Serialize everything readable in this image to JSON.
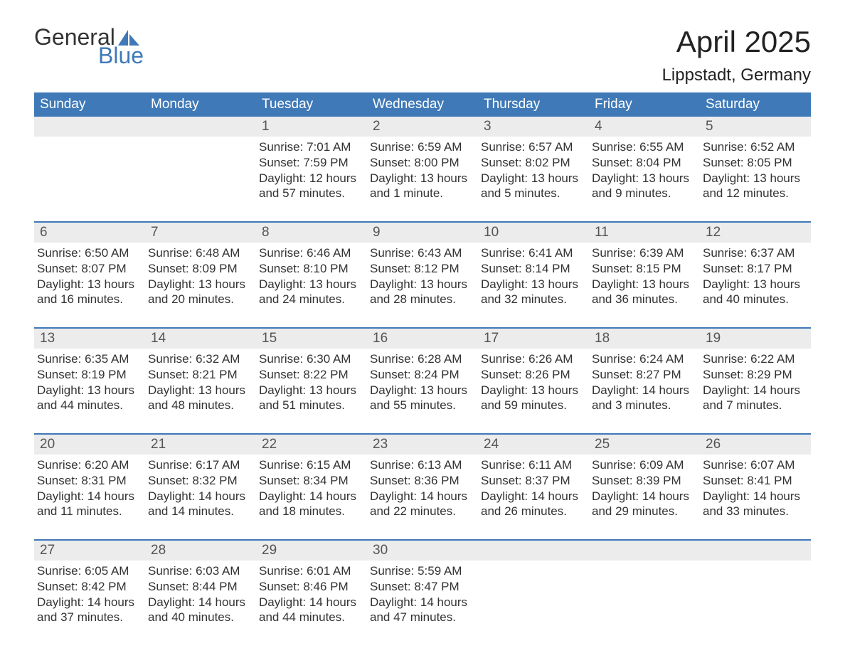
{
  "brand": {
    "general": "General",
    "blue": "Blue",
    "sail_color": "#3f79b7"
  },
  "title": {
    "month": "April 2025",
    "location": "Lippstadt, Germany"
  },
  "colors": {
    "header_bg": "#3f79b7",
    "header_text": "#ffffff",
    "daynum_bg": "#ececec",
    "daynum_text": "#555555",
    "body_text": "#333333",
    "divider": "#3f79b7",
    "page_bg": "#ffffff"
  },
  "typography": {
    "title_fontsize": 42,
    "location_fontsize": 24,
    "dow_fontsize": 19,
    "daynum_fontsize": 19,
    "body_fontsize": 17,
    "font_family": "Arial"
  },
  "days_of_week": [
    "Sunday",
    "Monday",
    "Tuesday",
    "Wednesday",
    "Thursday",
    "Friday",
    "Saturday"
  ],
  "weeks": [
    [
      null,
      null,
      {
        "num": "1",
        "sunrise": "Sunrise: 7:01 AM",
        "sunset": "Sunset: 7:59 PM",
        "daylight": "Daylight: 12 hours and 57 minutes."
      },
      {
        "num": "2",
        "sunrise": "Sunrise: 6:59 AM",
        "sunset": "Sunset: 8:00 PM",
        "daylight": "Daylight: 13 hours and 1 minute."
      },
      {
        "num": "3",
        "sunrise": "Sunrise: 6:57 AM",
        "sunset": "Sunset: 8:02 PM",
        "daylight": "Daylight: 13 hours and 5 minutes."
      },
      {
        "num": "4",
        "sunrise": "Sunrise: 6:55 AM",
        "sunset": "Sunset: 8:04 PM",
        "daylight": "Daylight: 13 hours and 9 minutes."
      },
      {
        "num": "5",
        "sunrise": "Sunrise: 6:52 AM",
        "sunset": "Sunset: 8:05 PM",
        "daylight": "Daylight: 13 hours and 12 minutes."
      }
    ],
    [
      {
        "num": "6",
        "sunrise": "Sunrise: 6:50 AM",
        "sunset": "Sunset: 8:07 PM",
        "daylight": "Daylight: 13 hours and 16 minutes."
      },
      {
        "num": "7",
        "sunrise": "Sunrise: 6:48 AM",
        "sunset": "Sunset: 8:09 PM",
        "daylight": "Daylight: 13 hours and 20 minutes."
      },
      {
        "num": "8",
        "sunrise": "Sunrise: 6:46 AM",
        "sunset": "Sunset: 8:10 PM",
        "daylight": "Daylight: 13 hours and 24 minutes."
      },
      {
        "num": "9",
        "sunrise": "Sunrise: 6:43 AM",
        "sunset": "Sunset: 8:12 PM",
        "daylight": "Daylight: 13 hours and 28 minutes."
      },
      {
        "num": "10",
        "sunrise": "Sunrise: 6:41 AM",
        "sunset": "Sunset: 8:14 PM",
        "daylight": "Daylight: 13 hours and 32 minutes."
      },
      {
        "num": "11",
        "sunrise": "Sunrise: 6:39 AM",
        "sunset": "Sunset: 8:15 PM",
        "daylight": "Daylight: 13 hours and 36 minutes."
      },
      {
        "num": "12",
        "sunrise": "Sunrise: 6:37 AM",
        "sunset": "Sunset: 8:17 PM",
        "daylight": "Daylight: 13 hours and 40 minutes."
      }
    ],
    [
      {
        "num": "13",
        "sunrise": "Sunrise: 6:35 AM",
        "sunset": "Sunset: 8:19 PM",
        "daylight": "Daylight: 13 hours and 44 minutes."
      },
      {
        "num": "14",
        "sunrise": "Sunrise: 6:32 AM",
        "sunset": "Sunset: 8:21 PM",
        "daylight": "Daylight: 13 hours and 48 minutes."
      },
      {
        "num": "15",
        "sunrise": "Sunrise: 6:30 AM",
        "sunset": "Sunset: 8:22 PM",
        "daylight": "Daylight: 13 hours and 51 minutes."
      },
      {
        "num": "16",
        "sunrise": "Sunrise: 6:28 AM",
        "sunset": "Sunset: 8:24 PM",
        "daylight": "Daylight: 13 hours and 55 minutes."
      },
      {
        "num": "17",
        "sunrise": "Sunrise: 6:26 AM",
        "sunset": "Sunset: 8:26 PM",
        "daylight": "Daylight: 13 hours and 59 minutes."
      },
      {
        "num": "18",
        "sunrise": "Sunrise: 6:24 AM",
        "sunset": "Sunset: 8:27 PM",
        "daylight": "Daylight: 14 hours and 3 minutes."
      },
      {
        "num": "19",
        "sunrise": "Sunrise: 6:22 AM",
        "sunset": "Sunset: 8:29 PM",
        "daylight": "Daylight: 14 hours and 7 minutes."
      }
    ],
    [
      {
        "num": "20",
        "sunrise": "Sunrise: 6:20 AM",
        "sunset": "Sunset: 8:31 PM",
        "daylight": "Daylight: 14 hours and 11 minutes."
      },
      {
        "num": "21",
        "sunrise": "Sunrise: 6:17 AM",
        "sunset": "Sunset: 8:32 PM",
        "daylight": "Daylight: 14 hours and 14 minutes."
      },
      {
        "num": "22",
        "sunrise": "Sunrise: 6:15 AM",
        "sunset": "Sunset: 8:34 PM",
        "daylight": "Daylight: 14 hours and 18 minutes."
      },
      {
        "num": "23",
        "sunrise": "Sunrise: 6:13 AM",
        "sunset": "Sunset: 8:36 PM",
        "daylight": "Daylight: 14 hours and 22 minutes."
      },
      {
        "num": "24",
        "sunrise": "Sunrise: 6:11 AM",
        "sunset": "Sunset: 8:37 PM",
        "daylight": "Daylight: 14 hours and 26 minutes."
      },
      {
        "num": "25",
        "sunrise": "Sunrise: 6:09 AM",
        "sunset": "Sunset: 8:39 PM",
        "daylight": "Daylight: 14 hours and 29 minutes."
      },
      {
        "num": "26",
        "sunrise": "Sunrise: 6:07 AM",
        "sunset": "Sunset: 8:41 PM",
        "daylight": "Daylight: 14 hours and 33 minutes."
      }
    ],
    [
      {
        "num": "27",
        "sunrise": "Sunrise: 6:05 AM",
        "sunset": "Sunset: 8:42 PM",
        "daylight": "Daylight: 14 hours and 37 minutes."
      },
      {
        "num": "28",
        "sunrise": "Sunrise: 6:03 AM",
        "sunset": "Sunset: 8:44 PM",
        "daylight": "Daylight: 14 hours and 40 minutes."
      },
      {
        "num": "29",
        "sunrise": "Sunrise: 6:01 AM",
        "sunset": "Sunset: 8:46 PM",
        "daylight": "Daylight: 14 hours and 44 minutes."
      },
      {
        "num": "30",
        "sunrise": "Sunrise: 5:59 AM",
        "sunset": "Sunset: 8:47 PM",
        "daylight": "Daylight: 14 hours and 47 minutes."
      },
      null,
      null,
      null
    ]
  ]
}
